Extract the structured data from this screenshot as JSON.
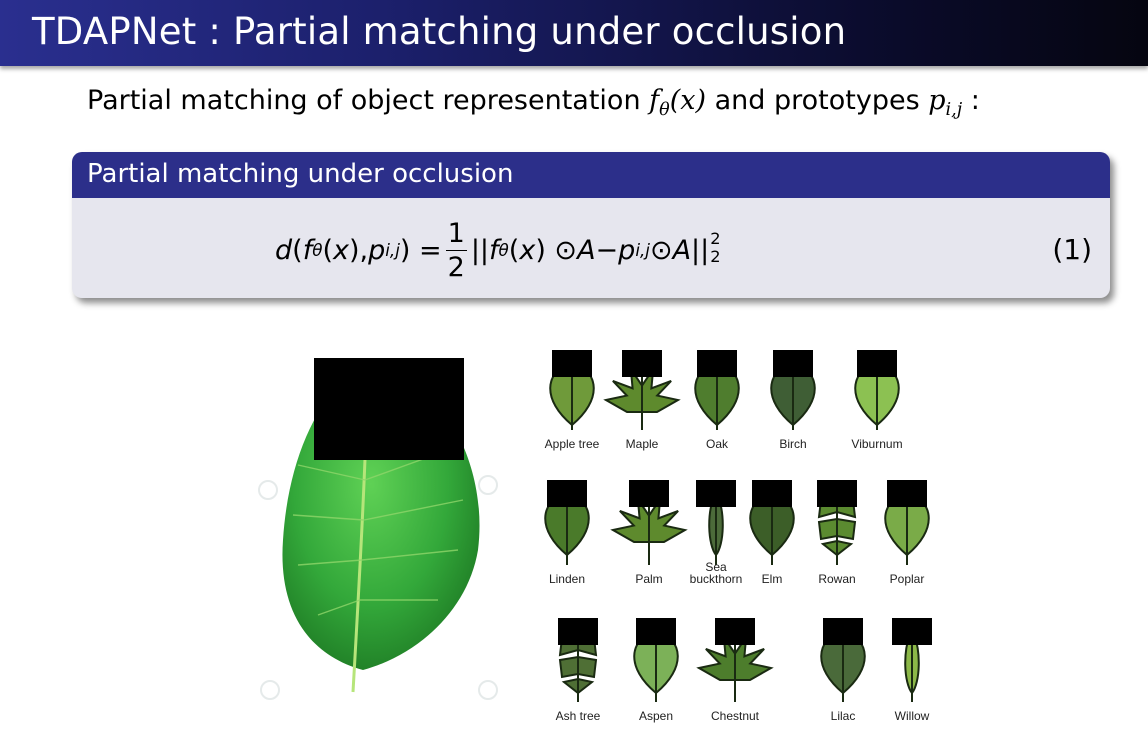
{
  "slide": {
    "title": "TDAPNet : Partial matching under occlusion",
    "intro_text": "Partial matching of object representation",
    "intro_and": "and prototypes",
    "intro_colon": ":"
  },
  "block": {
    "header": "Partial matching under occlusion",
    "equation_number": "(1)"
  },
  "leaves": [
    {
      "name": "Apple tree",
      "color": "#6f9a3a"
    },
    {
      "name": "Maple",
      "color": "#5e8a2d"
    },
    {
      "name": "Oak",
      "color": "#4f7d2e"
    },
    {
      "name": "Birch",
      "color": "#3f5e35"
    },
    {
      "name": "Viburnum",
      "color": "#8cc152"
    },
    {
      "name": "Linden",
      "color": "#4a7a2a"
    },
    {
      "name": "Palm",
      "color": "#5e8a2d"
    },
    {
      "name": "Sea buckthorn",
      "color": "#4c6b3a"
    },
    {
      "name": "Elm",
      "color": "#3c5e28"
    },
    {
      "name": "Rowan",
      "color": "#5b8b30"
    },
    {
      "name": "Poplar",
      "color": "#7aab48"
    },
    {
      "name": "Ash tree",
      "color": "#4f6f35"
    },
    {
      "name": "Aspen",
      "color": "#7cb158"
    },
    {
      "name": "Chestnut",
      "color": "#4d7d2c"
    },
    {
      "name": "Lilac",
      "color": "#4a6a3a"
    },
    {
      "name": "Willow",
      "color": "#8cb848"
    }
  ]
}
